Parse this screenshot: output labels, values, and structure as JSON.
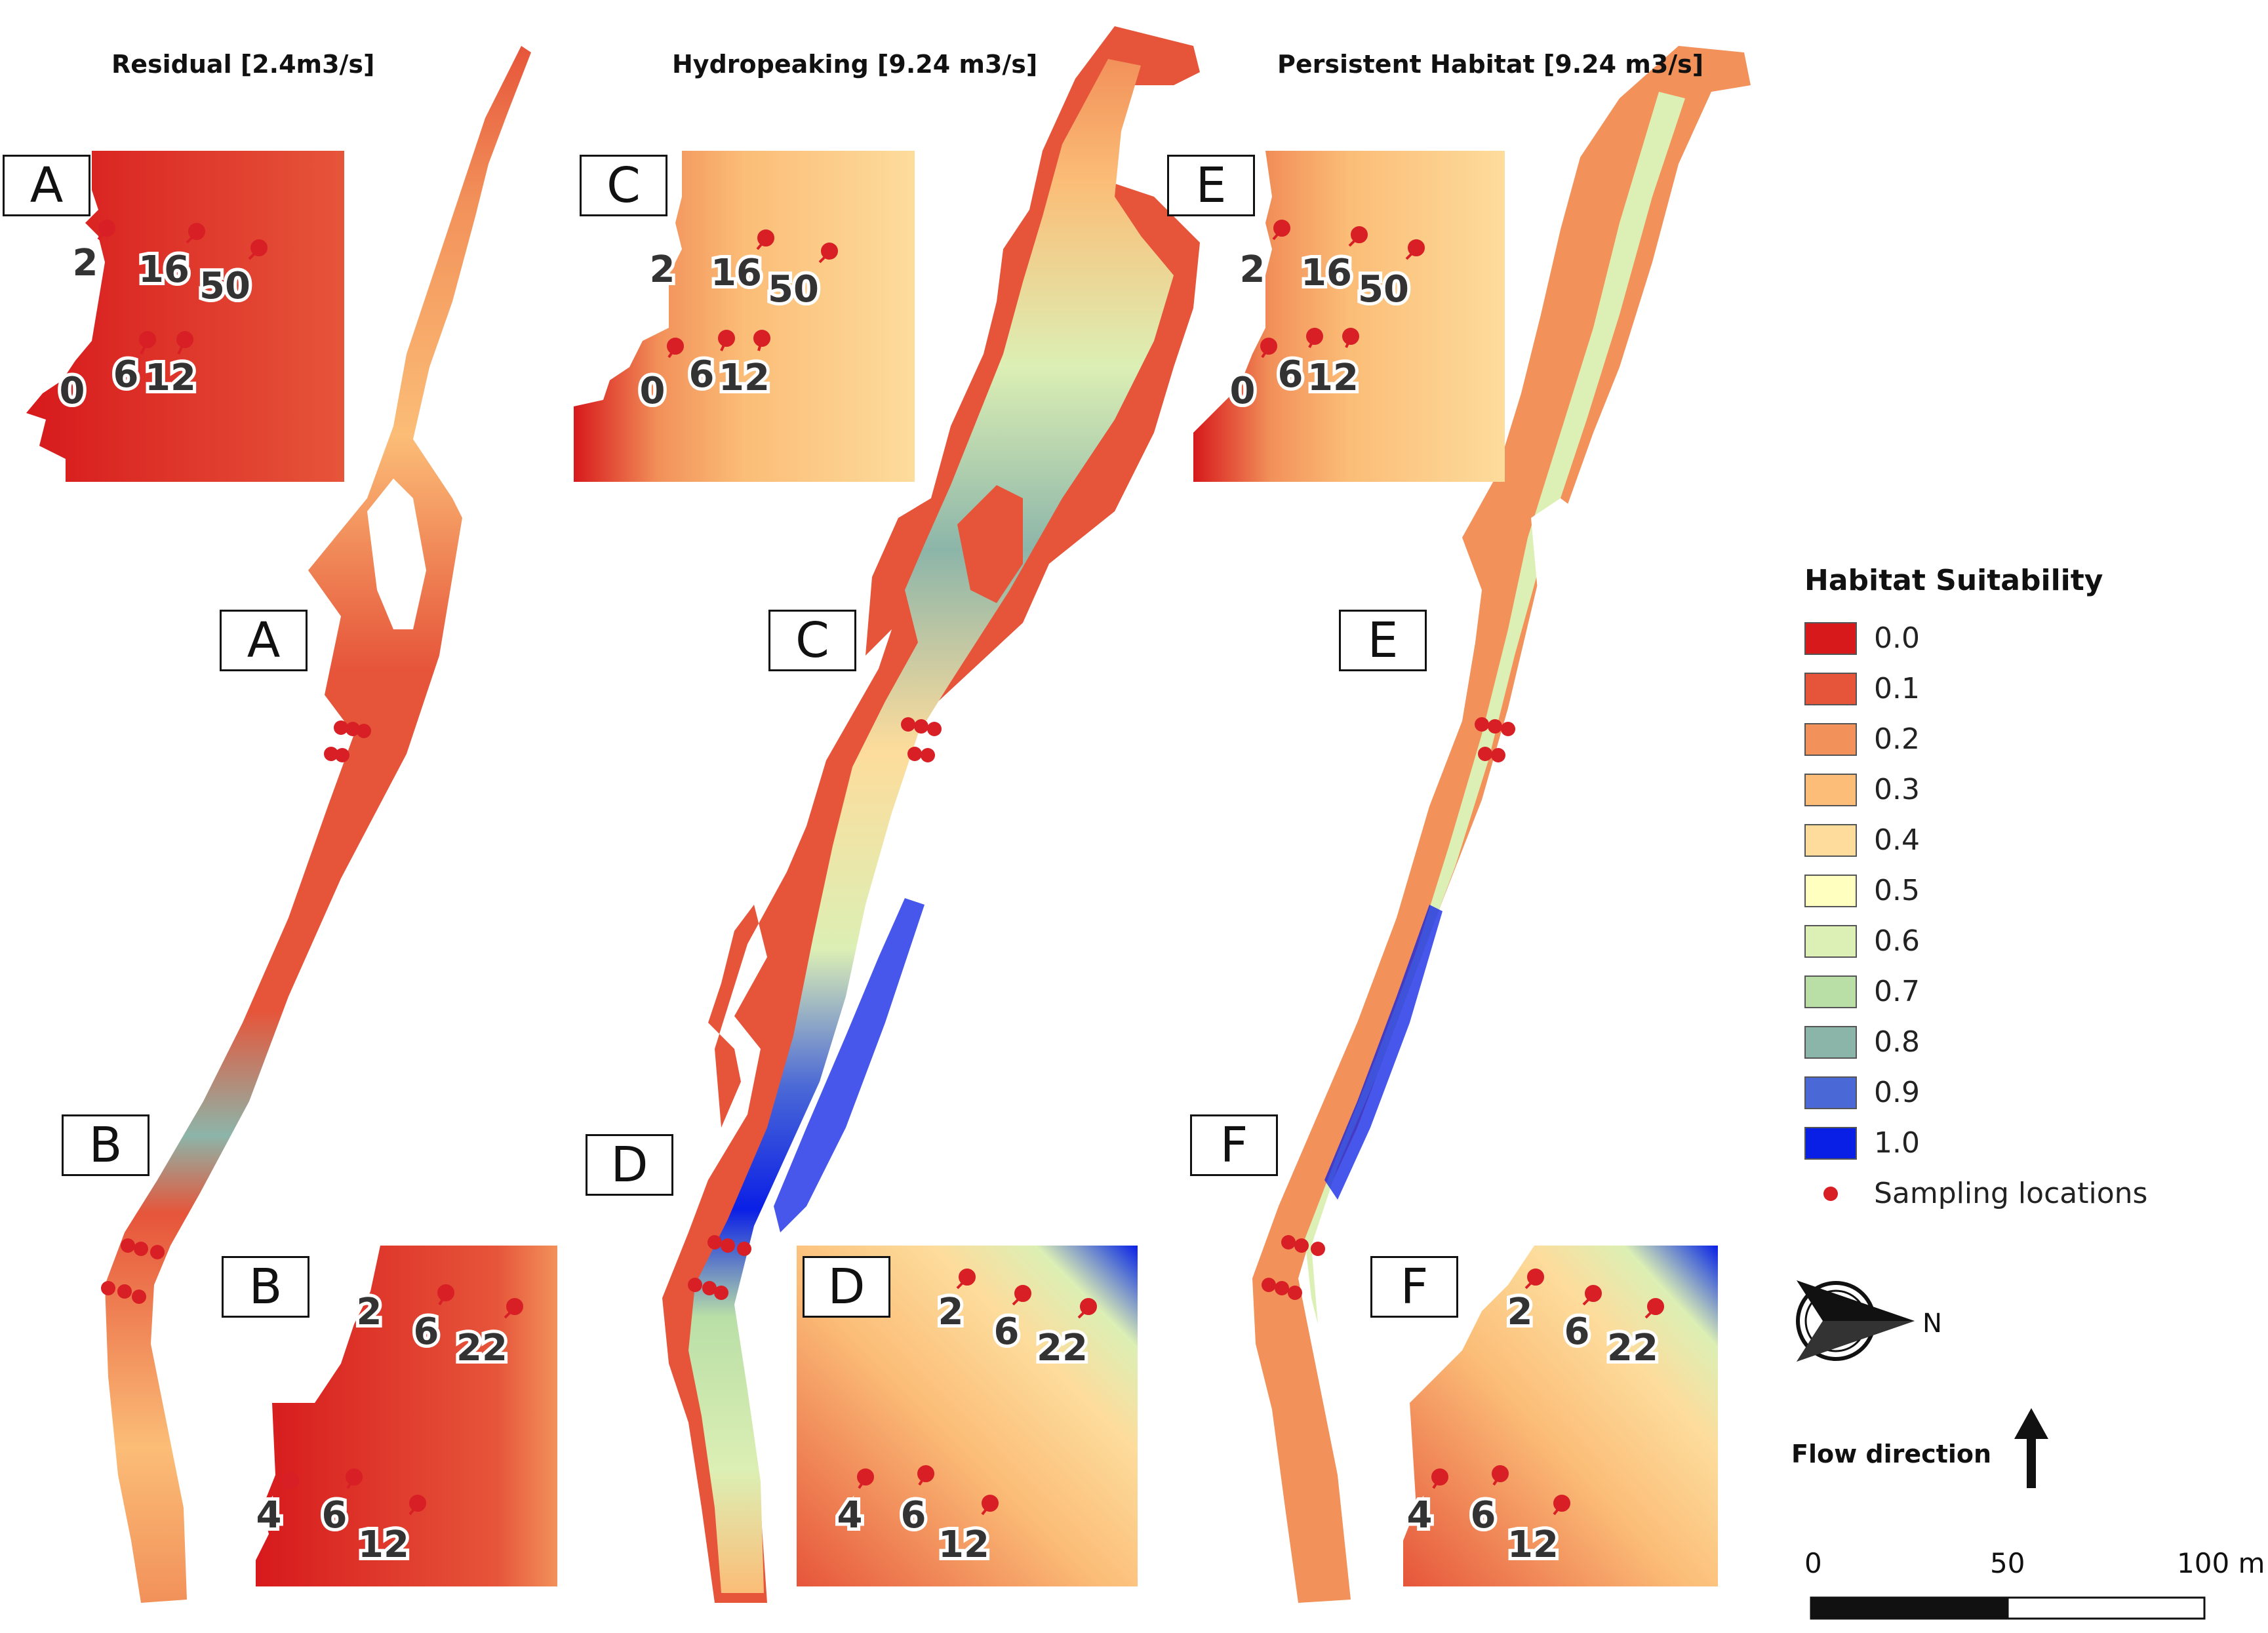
{
  "panels": [
    {
      "title": "Residual [2.4m3/s]"
    },
    {
      "title": "Hydropeaking [9.24 m3/s]"
    },
    {
      "title": "Persistent Habitat [9.24 m3/s]"
    }
  ],
  "box_labels": [
    "A",
    "A",
    "B",
    "B",
    "C",
    "C",
    "D",
    "D",
    "E",
    "E",
    "F",
    "F"
  ],
  "inset_numbers_top": [
    "2",
    "16",
    "50",
    "0",
    "6",
    "12"
  ],
  "inset_numbers_bottom": [
    "2",
    "6",
    "22",
    "4",
    "6",
    "12"
  ],
  "legend": {
    "title": "Habitat Suitability",
    "items": [
      {
        "label": "0.0",
        "color": "#d7191c"
      },
      {
        "label": "0.1",
        "color": "#e6553a"
      },
      {
        "label": "0.2",
        "color": "#f2915a"
      },
      {
        "label": "0.3",
        "color": "#fbbd77"
      },
      {
        "label": "0.4",
        "color": "#fddc9c"
      },
      {
        "label": "0.5",
        "color": "#ffffbf"
      },
      {
        "label": "0.6",
        "color": "#dcefb4"
      },
      {
        "label": "0.7",
        "color": "#b9dfa7"
      },
      {
        "label": "0.8",
        "color": "#8cb5a9"
      },
      {
        "label": "0.9",
        "color": "#4b69d6"
      },
      {
        "label": "1.0",
        "color": "#0a1fe6"
      }
    ],
    "sampling_label": "Sampling locations",
    "sampling_color": "#d81f26"
  },
  "north_label": "N",
  "flow_direction_label": "Flow direction",
  "scale": {
    "labels": [
      "0",
      "50",
      "100 m"
    ]
  }
}
